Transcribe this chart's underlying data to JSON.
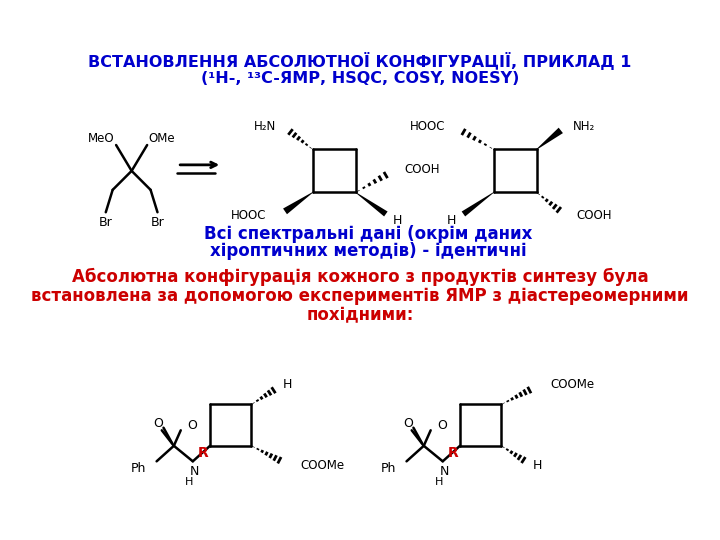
{
  "title_line1": "ВСТАНОВЛЕННЯ АБСОЛЮТНОЇ КОНФІГУРАЦІЇ, ПРИКЛАД 1",
  "title_line2": "(¹H-, ¹³C-ЯМР, HSQC, COSY, NOESY)",
  "title_color": "#0000CD",
  "title_fontsize": 11.5,
  "text1_line1": "Всі спектральні дані (окрім даних",
  "text1_line2": "хіроптичних методів) - ідентичні",
  "text1_color": "#0000CD",
  "text1_fontsize": 12,
  "text2_line1": "Абсолютна конфігурація кожного з продуктів синтезу була",
  "text2_line2": "встановлена за допомогою експериментів ЯМР з діастереомерними",
  "text2_line3": "похідними:",
  "text2_color": "#CC0000",
  "text2_fontsize": 12,
  "bg_color": "#FFFFFF",
  "R_color": "#CC0000"
}
